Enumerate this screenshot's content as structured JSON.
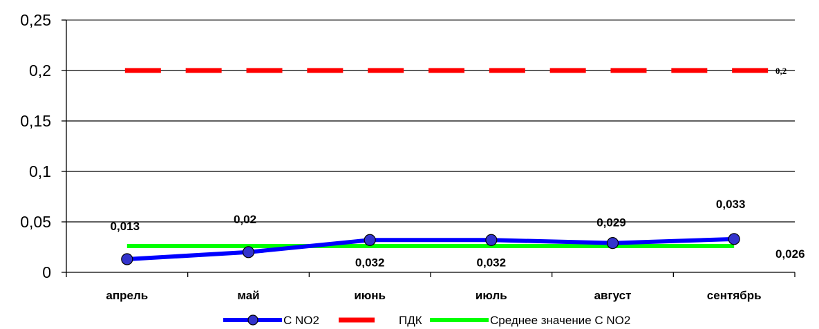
{
  "chart_data": {
    "type": "line",
    "categories": [
      "апрель",
      "май",
      "июнь",
      "июль",
      "август",
      "сентябрь"
    ],
    "ylim": [
      0,
      0.25
    ],
    "yticks": [
      "0",
      "0,05",
      "0,1",
      "0,15",
      "0,2",
      "0,25"
    ],
    "grid": true,
    "legend_position": "bottom",
    "series": [
      {
        "name": "С NO2",
        "values": [
          0.013,
          0.02,
          0.032,
          0.032,
          0.029,
          0.033
        ],
        "labels": [
          "0,013",
          "0,02",
          "0,032",
          "0,032",
          "0,029",
          "0,033"
        ],
        "color": "#0000ff",
        "marker_color": "#3333cc"
      },
      {
        "name": "ПДК",
        "values": [
          0.2,
          0.2,
          0.2,
          0.2,
          0.2,
          0.2
        ],
        "end_label": "0,2",
        "color": "#ff0000",
        "style": "dashed"
      },
      {
        "name": "Среднее значение С NO2",
        "values": [
          0.026,
          0.026,
          0.026,
          0.026,
          0.026,
          0.026
        ],
        "end_label": "0,026",
        "color": "#00ff00"
      }
    ]
  }
}
